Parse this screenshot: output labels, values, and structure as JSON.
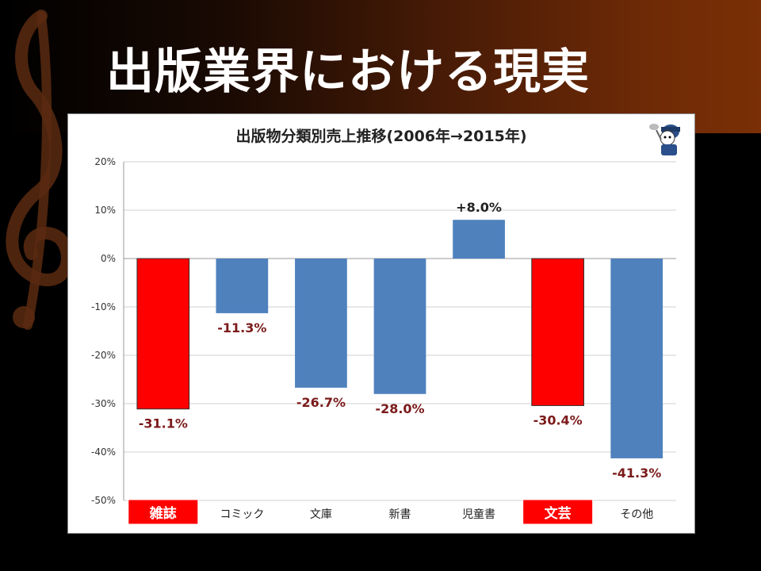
{
  "slide": {
    "title": "出版業界における現実"
  },
  "colors": {
    "bar_default": "#4f81bd",
    "bar_highlight": "#ff0000",
    "value_label": "#7b1a1a",
    "highlight_label_bg": "#ff0000",
    "highlight_label_text": "#ffffff"
  },
  "chart_data": {
    "type": "bar",
    "title": "出版物分類別売上推移(2006年→2015年)",
    "xlabel": "",
    "ylabel": "",
    "categories": [
      "雑誌",
      "コミック",
      "文庫",
      "新書",
      "児童書",
      "文芸",
      "その他"
    ],
    "values": [
      -31.1,
      -11.3,
      -26.7,
      -28.0,
      8.0,
      -30.4,
      -41.3
    ],
    "value_labels": [
      "-31.1%",
      "-11.3%",
      "-26.7%",
      "-28.0%",
      "+8.0%",
      "-30.4%",
      "-41.3%"
    ],
    "highlighted": [
      true,
      false,
      false,
      false,
      false,
      true,
      false
    ],
    "ylim": [
      -50,
      20
    ],
    "yticks": [
      20,
      10,
      0,
      -10,
      -20,
      -30,
      -40,
      -50
    ],
    "ytick_labels": [
      "20%",
      "10%",
      "0%",
      "-10%",
      "-20%",
      "-30%",
      "-40%",
      "-50%"
    ],
    "grid": true,
    "legend": "none"
  }
}
